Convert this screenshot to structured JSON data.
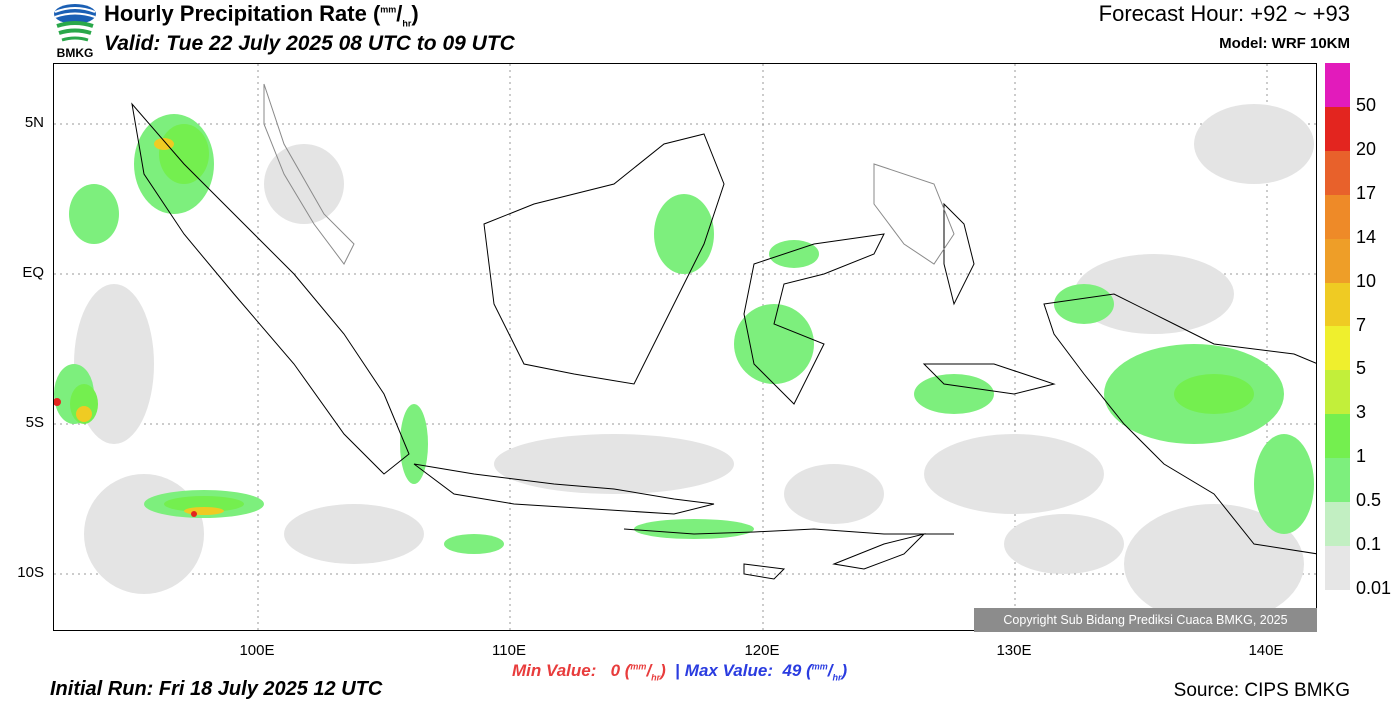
{
  "header": {
    "title_main": "Hourly Precipitation Rate (",
    "title_unit_top": "mm",
    "title_unit_slash": "/",
    "title_unit_bottom": "hr",
    "title_close": ")",
    "valid": "Valid: Tue 22 July 2025 08 UTC to 09 UTC",
    "forecast_hour": "Forecast Hour: +92 ~ +93",
    "model": "Model: WRF 10KM",
    "logo_text": "BMKG"
  },
  "map": {
    "lat_labels": [
      "5N",
      "EQ",
      "5S",
      "10S"
    ],
    "lon_labels": [
      "100E",
      "110E",
      "120E",
      "130E",
      "140E"
    ],
    "copyright": "Copyright Sub Bidang Prediksi Cuaca BMKG, 2025"
  },
  "legend": {
    "labels": [
      "50",
      "20",
      "17",
      "14",
      "10",
      "7",
      "5",
      "3",
      "1",
      "0.5",
      "0.1",
      "0.01"
    ],
    "colors": [
      "#e21bbb",
      "#e3251f",
      "#e8612b",
      "#ee8a28",
      "#ee9e28",
      "#efcb23",
      "#efef2d",
      "#c2ef3a",
      "#74ef4f",
      "#7def7d",
      "#c2efc2",
      "#e6e6e6"
    ]
  },
  "footer": {
    "min_label": "Min Value:",
    "min_value": "0",
    "max_label": "Max Value:",
    "max_value": "49",
    "unit_top": "mm",
    "unit_bottom": "hr",
    "initial_run": "Initial Run: Fri 18 July 2025 12 UTC",
    "source": "Source: CIPS BMKG"
  }
}
